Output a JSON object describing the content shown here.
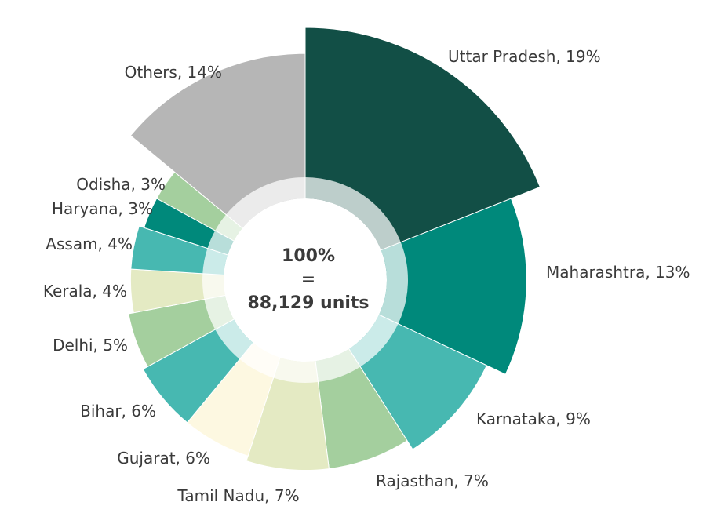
{
  "chart_data": {
    "type": "pie",
    "variant": "polar-area-donut",
    "total_line1": "100%",
    "total_line2": "=",
    "total_line3": "88,129 units",
    "slices": [
      {
        "name": "Uttar Pradesh",
        "value": 19,
        "label": "Uttar Pradesh, 19%",
        "color": "#124f46"
      },
      {
        "name": "Maharashtra",
        "value": 13,
        "label": "Maharashtra, 13%",
        "color": "#00897b"
      },
      {
        "name": "Karnataka",
        "value": 9,
        "label": "Karnataka, 9%",
        "color": "#47b8b1"
      },
      {
        "name": "Rajasthan",
        "value": 7,
        "label": "Rajasthan, 7%",
        "color": "#a4cf9e"
      },
      {
        "name": "Tamil Nadu",
        "value": 7,
        "label": "Tamil Nadu, 7%",
        "color": "#e4eac3"
      },
      {
        "name": "Gujarat",
        "value": 6,
        "label": "Gujarat, 6%",
        "color": "#fdf8e1"
      },
      {
        "name": "Bihar",
        "value": 6,
        "label": "Bihar, 6%",
        "color": "#47b8b1"
      },
      {
        "name": "Delhi",
        "value": 5,
        "label": "Delhi, 5%",
        "color": "#a4cf9e"
      },
      {
        "name": "Kerala",
        "value": 4,
        "label": "Kerala, 4%",
        "color": "#e4eac3"
      },
      {
        "name": "Assam",
        "value": 4,
        "label": "Assam, 4%",
        "color": "#47b8b1"
      },
      {
        "name": "Haryana",
        "value": 3,
        "label": "Haryana, 3%",
        "color": "#00897b"
      },
      {
        "name": "Odisha",
        "value": 3,
        "label": "Odisha, 3%",
        "color": "#a4cf9e"
      },
      {
        "name": "Others",
        "value": 14,
        "label": "Others, 14%",
        "color": "#b6b6b6"
      }
    ]
  }
}
